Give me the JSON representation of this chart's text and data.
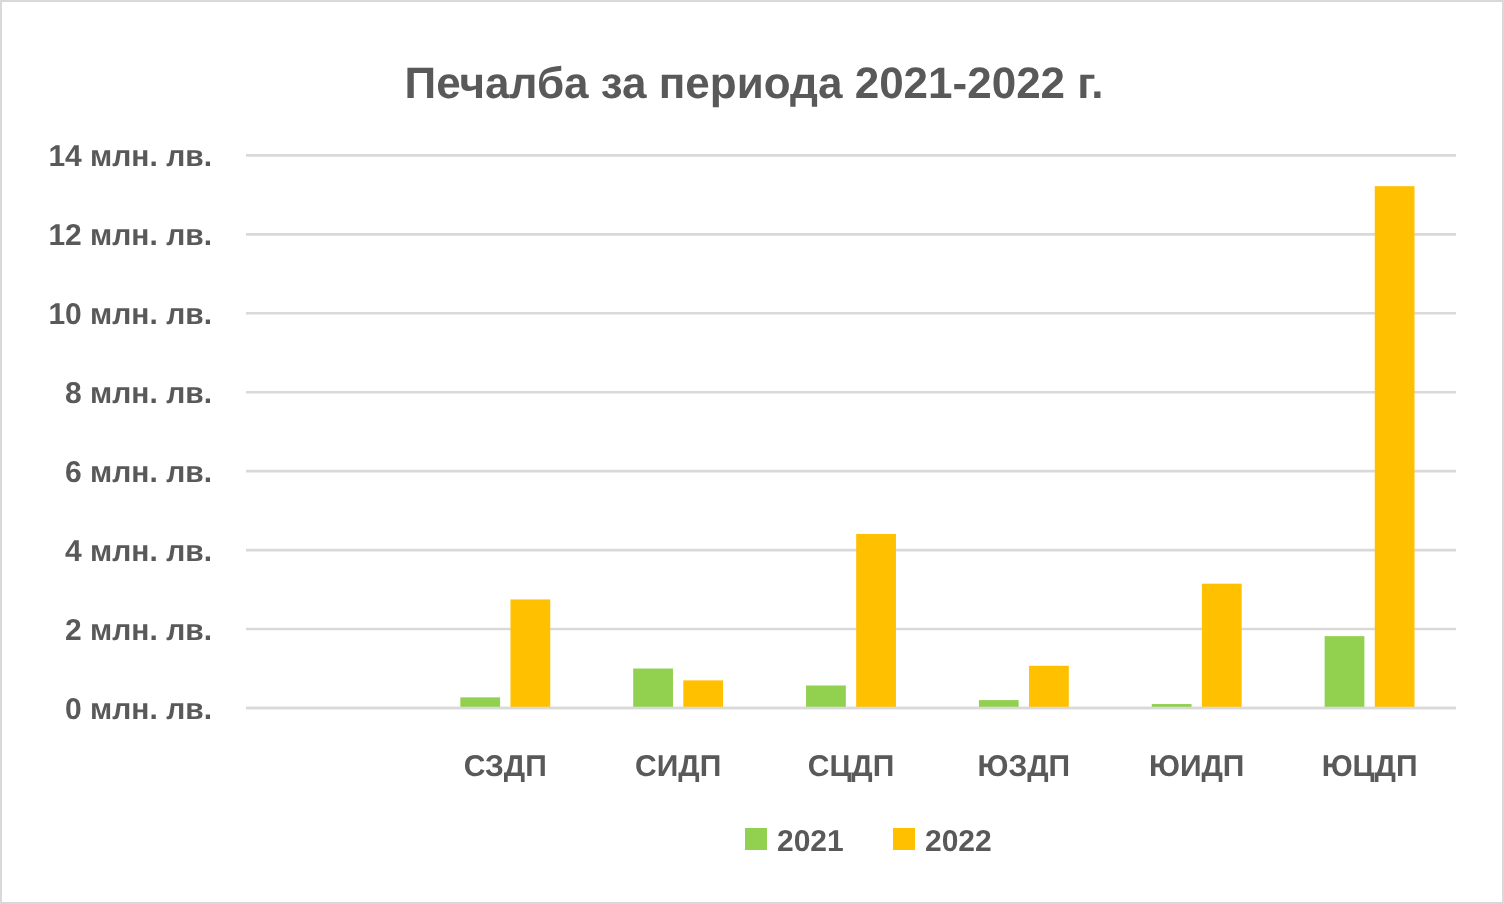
{
  "chart_data": {
    "type": "bar",
    "title": "Печалба за периода 2021-2022 г.",
    "categories": [
      null,
      "СЗДП",
      "СИДП",
      "СЦДП",
      "ЮЗДП",
      "ЮИДП",
      "ЮЦДП"
    ],
    "series": [
      {
        "name": "2021",
        "color": "#92d050",
        "values": [
          null,
          0.27,
          1.0,
          0.57,
          0.2,
          0.1,
          1.82
        ]
      },
      {
        "name": "2022",
        "color": "#ffc000",
        "values": [
          null,
          2.75,
          0.7,
          4.41,
          1.07,
          3.15,
          13.22
        ]
      }
    ],
    "ylim": [
      0,
      14
    ],
    "yticks": [
      {
        "value": 0,
        "label": "0 млн. лв."
      },
      {
        "value": 2,
        "label": "2 млн. лв."
      },
      {
        "value": 4,
        "label": "4 млн. лв."
      },
      {
        "value": 6,
        "label": "6 млн. лв."
      },
      {
        "value": 8,
        "label": "8 млн. лв."
      },
      {
        "value": 10,
        "label": "10 млн. лв."
      },
      {
        "value": 12,
        "label": "12 млн. лв."
      },
      {
        "value": 14,
        "label": "14 млн. лв."
      }
    ],
    "grid": "y",
    "legend": "bottom"
  }
}
